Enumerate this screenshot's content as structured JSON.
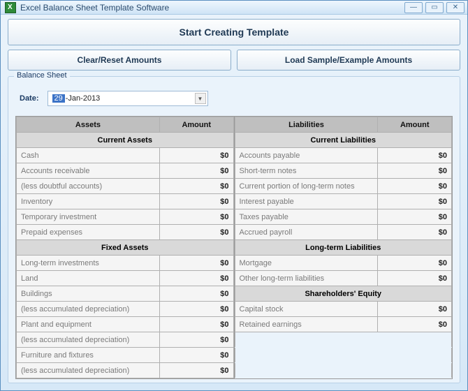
{
  "window": {
    "title": "Excel Balance Sheet Template Software"
  },
  "buttons": {
    "start": "Start Creating Template",
    "clear": "Clear/Reset Amounts",
    "load": "Load Sample/Example Amounts"
  },
  "group": {
    "legend": "Balance Sheet",
    "date_label": "Date:",
    "date_day": "29",
    "date_rest": "-Jan-2013"
  },
  "headers": {
    "assets": "Assets",
    "liabilities": "Liabilities",
    "amount": "Amount"
  },
  "sections": {
    "current_assets": "Current Assets",
    "fixed_assets": "Fixed Assets",
    "current_liabilities": "Current Liabilities",
    "long_term_liabilities": "Long-term Liabilities",
    "shareholders_equity": "Shareholders' Equity"
  },
  "assets_current": [
    {
      "name": "Cash",
      "amount": "$0"
    },
    {
      "name": "Accounts receivable",
      "amount": "$0"
    },
    {
      "name": "(less doubtful accounts)",
      "amount": "$0"
    },
    {
      "name": "Inventory",
      "amount": "$0"
    },
    {
      "name": "Temporary investment",
      "amount": "$0"
    },
    {
      "name": "Prepaid expenses",
      "amount": "$0"
    }
  ],
  "assets_fixed": [
    {
      "name": "Long-term investments",
      "amount": "$0"
    },
    {
      "name": "Land",
      "amount": "$0"
    },
    {
      "name": "Buildings",
      "amount": "$0"
    },
    {
      "name": "(less accumulated depreciation)",
      "amount": "$0"
    },
    {
      "name": "Plant and equipment",
      "amount": "$0"
    },
    {
      "name": "(less accumulated depreciation)",
      "amount": "$0"
    },
    {
      "name": "Furniture and fixtures",
      "amount": "$0"
    },
    {
      "name": "(less accumulated depreciation)",
      "amount": "$0"
    }
  ],
  "liab_current": [
    {
      "name": "Accounts payable",
      "amount": "$0"
    },
    {
      "name": "Short-term notes",
      "amount": "$0"
    },
    {
      "name": "Current portion of long-term notes",
      "amount": "$0"
    },
    {
      "name": "Interest payable",
      "amount": "$0"
    },
    {
      "name": "Taxes payable",
      "amount": "$0"
    },
    {
      "name": "Accrued payroll",
      "amount": "$0"
    }
  ],
  "liab_longterm": [
    {
      "name": "Mortgage",
      "amount": "$0"
    },
    {
      "name": "Other long-term liabilities",
      "amount": "$0"
    }
  ],
  "equity": [
    {
      "name": "Capital stock",
      "amount": "$0"
    },
    {
      "name": "Retained earnings",
      "amount": "$0"
    }
  ],
  "colors": {
    "window_bg_top": "#eaf3fb",
    "window_bg_bottom": "#d6e8f7",
    "window_border": "#5a8fc0",
    "header_cell": "#bfbfbf",
    "section_cell": "#d9d9d9",
    "data_cell": "#f5f5f5",
    "cell_border": "#b0b0b0",
    "button_border": "#8badcb"
  }
}
